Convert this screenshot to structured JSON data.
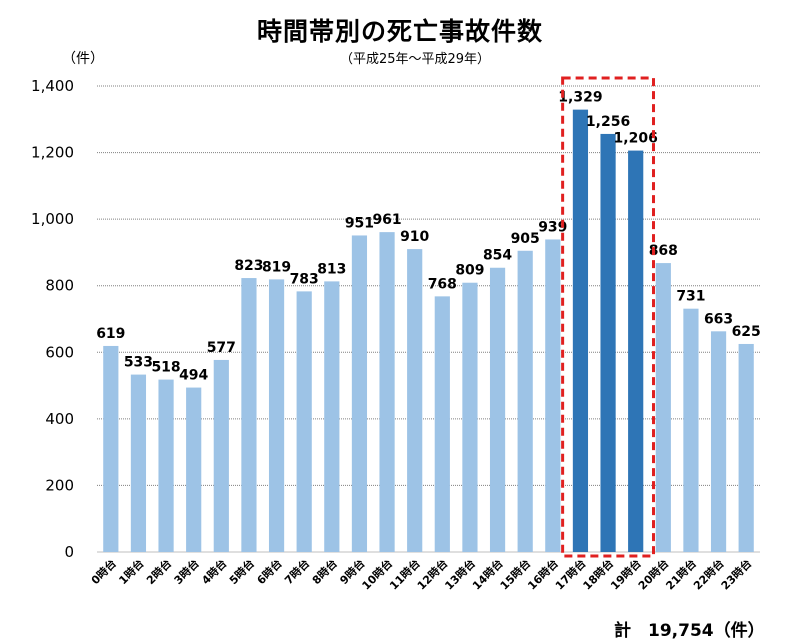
{
  "chart_data": {
    "type": "bar",
    "title": "時間帯別の死亡事故件数",
    "subtitle": "（平成25年～平成29年）",
    "ylabel": "（件）",
    "ylim": [
      0,
      1400
    ],
    "yticks": [
      "0",
      "200",
      "400",
      "600",
      "800",
      "1,000",
      "1,200",
      "1,400"
    ],
    "grid": true,
    "categories": [
      "0時台",
      "1時台",
      "2時台",
      "3時台",
      "4時台",
      "5時台",
      "6時台",
      "7時台",
      "8時台",
      "9時台",
      "10時台",
      "11時台",
      "12時台",
      "13時台",
      "14時台",
      "15時台",
      "16時台",
      "17時台",
      "18時台",
      "19時台",
      "20時台",
      "21時台",
      "22時台",
      "23時台"
    ],
    "values": [
      619,
      533,
      518,
      494,
      577,
      823,
      819,
      783,
      813,
      951,
      961,
      910,
      768,
      809,
      854,
      905,
      939,
      1329,
      1256,
      1206,
      868,
      731,
      663,
      625
    ],
    "value_labels": [
      "619",
      "533",
      "518",
      "494",
      "577",
      "823",
      "819",
      "783",
      "813",
      "951",
      "961",
      "910",
      "768",
      "809",
      "854",
      "905",
      "939",
      "1,329",
      "1,256",
      "1,206",
      "868",
      "731",
      "663",
      "625"
    ],
    "highlighted_categories": [
      "17時台",
      "18時台",
      "19時台"
    ],
    "colors": {
      "bar": "#9DC3E6",
      "highlight": "#2E75B6",
      "box": "#E02020",
      "grid": "#808080"
    },
    "total_label": "計　19,754（件）"
  }
}
